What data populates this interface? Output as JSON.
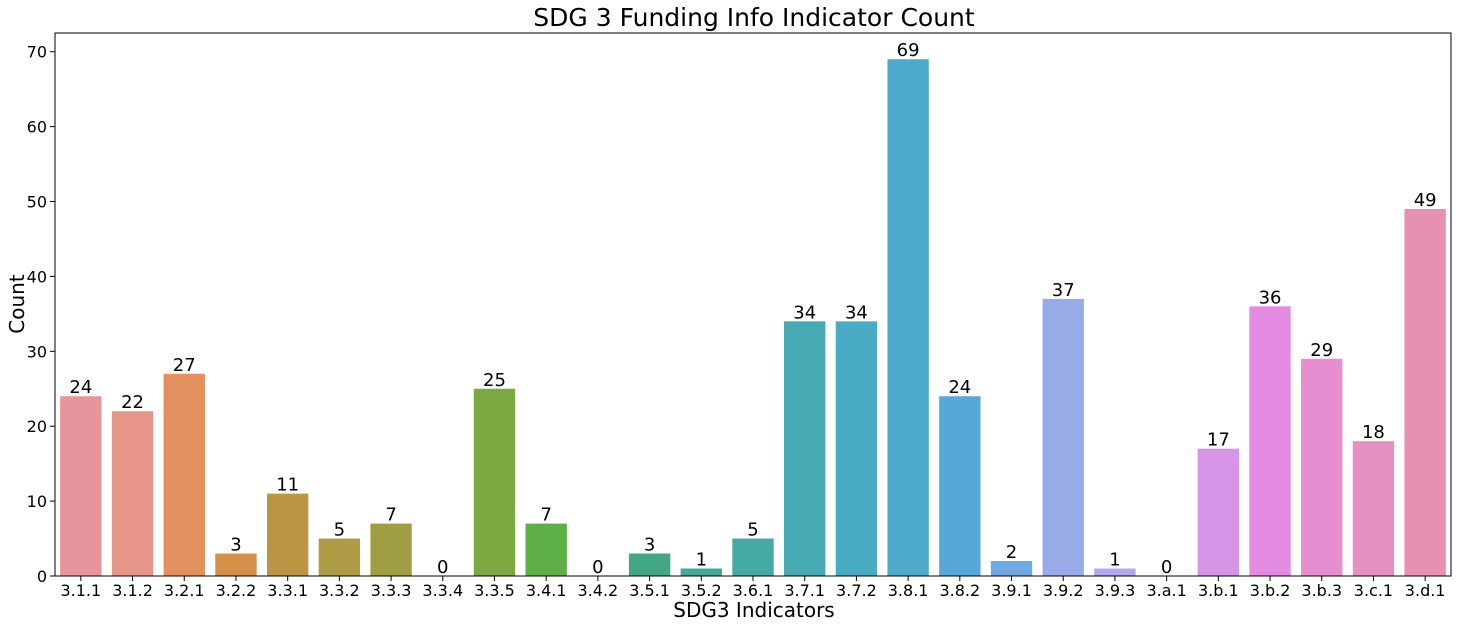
{
  "chart_data": {
    "type": "bar",
    "title": "SDG 3 Funding Info Indicator Count",
    "xlabel": "SDG3 Indicators",
    "ylabel": "Count",
    "ylim": [
      0,
      72.5
    ],
    "yticks": [
      0,
      10,
      20,
      30,
      40,
      50,
      60,
      70
    ],
    "grid": false,
    "categories": [
      "3.1.1",
      "3.1.2",
      "3.2.1",
      "3.2.2",
      "3.3.1",
      "3.3.2",
      "3.3.3",
      "3.3.4",
      "3.3.5",
      "3.4.1",
      "3.4.2",
      "3.5.1",
      "3.5.2",
      "3.6.1",
      "3.7.1",
      "3.7.2",
      "3.8.1",
      "3.8.2",
      "3.9.1",
      "3.9.2",
      "3.9.3",
      "3.a.1",
      "3.b.1",
      "3.b.2",
      "3.b.3",
      "3.c.1",
      "3.d.1"
    ],
    "values": [
      24,
      22,
      27,
      3,
      11,
      5,
      7,
      0,
      25,
      7,
      0,
      3,
      1,
      5,
      34,
      34,
      69,
      24,
      2,
      37,
      1,
      0,
      17,
      36,
      29,
      18,
      49
    ],
    "colors": [
      "#e8949c",
      "#e8968a",
      "#e3905f",
      "#d6904a",
      "#bd9444",
      "#ad9b45",
      "#9f9e43",
      "#8ea242",
      "#7ca842",
      "#5eaf46",
      "#47a767",
      "#43a685",
      "#44a898",
      "#45a9a5",
      "#46a9b4",
      "#48abc3",
      "#4daacb",
      "#55a8d9",
      "#6fa8e3",
      "#98aae8",
      "#b1a6ef",
      "#c9a1f0",
      "#d895e7",
      "#e48be2",
      "#e68fd0",
      "#e690c2",
      "#e790b1"
    ]
  }
}
